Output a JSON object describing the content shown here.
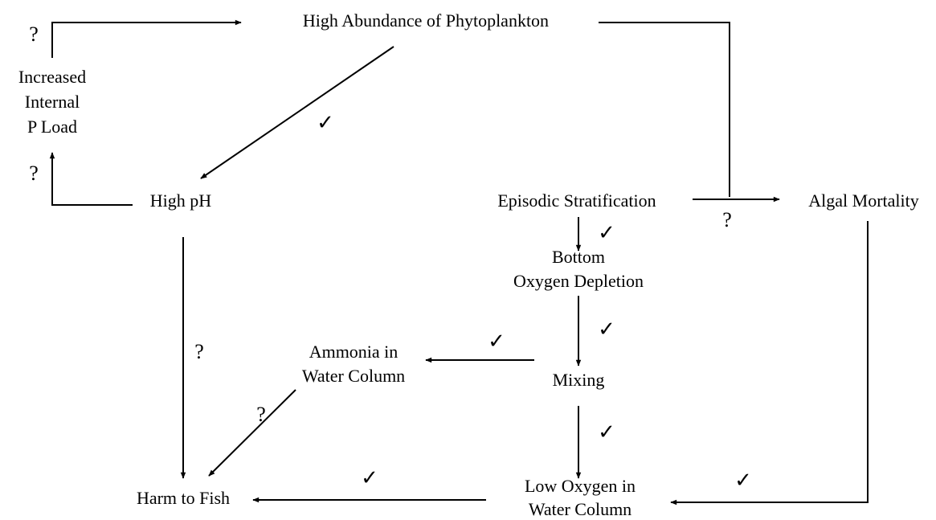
{
  "nodes": [
    {
      "lines": [
        "High Abundance of Phytoplankton"
      ]
    },
    {
      "lines": [
        "Increased",
        "Internal",
        "P Load"
      ]
    },
    {
      "lines": [
        "High pH"
      ]
    },
    {
      "lines": [
        "Episodic Stratification"
      ]
    },
    {
      "lines": [
        "Algal Mortality"
      ]
    },
    {
      "lines": [
        "Bottom",
        "Oxygen Depletion"
      ]
    },
    {
      "lines": [
        "Mixing"
      ]
    },
    {
      "lines": [
        "Ammonia in",
        "Water Column"
      ]
    },
    {
      "lines": [
        "Harm to Fish"
      ]
    },
    {
      "lines": [
        "Low Oxygen in",
        "Water Column"
      ]
    }
  ],
  "edges": [
    {
      "label": "?"
    },
    {
      "label": "✓"
    },
    {
      "label": "?"
    },
    {
      "label": "?"
    },
    {
      "label": "✓"
    },
    {
      "label": "✓"
    },
    {
      "label": "✓"
    },
    {
      "label": "✓"
    },
    {
      "label": "✓"
    },
    {
      "label": "?"
    },
    {
      "label": "?"
    },
    {
      "label": "✓"
    }
  ]
}
